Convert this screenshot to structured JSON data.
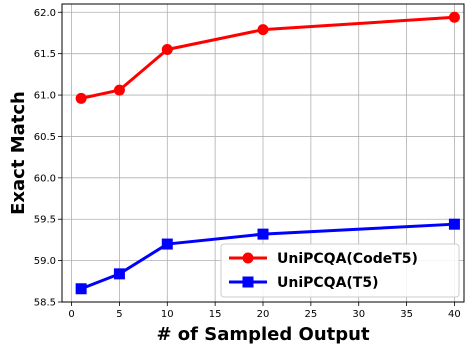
{
  "chart_data": {
    "type": "line",
    "xlabel": "# of Sampled Output",
    "ylabel": "Exact Match",
    "xlim": [
      -1,
      41
    ],
    "ylim": [
      58.5,
      62.1
    ],
    "xticks": [
      0,
      5,
      10,
      15,
      20,
      25,
      30,
      35,
      40
    ],
    "yticks": [
      58.5,
      59.0,
      59.5,
      60.0,
      60.5,
      61.0,
      61.5,
      62.0
    ],
    "xtick_labels": [
      "0",
      "5",
      "10",
      "15",
      "20",
      "25",
      "30",
      "35",
      "40"
    ],
    "ytick_labels": [
      "58.5",
      "59.0",
      "59.5",
      "60.0",
      "60.5",
      "61.0",
      "61.5",
      "62.0"
    ],
    "x": [
      1,
      5,
      10,
      20,
      40
    ],
    "grid": true,
    "legend_position": "lower-right",
    "series": [
      {
        "name": "UniPCQA(CodeT5)",
        "color": "#ff0000",
        "marker": "circle",
        "values": [
          60.96,
          61.06,
          61.55,
          61.79,
          61.94
        ]
      },
      {
        "name": "UniPCQA(T5)",
        "color": "#0000ff",
        "marker": "square",
        "values": [
          58.66,
          58.84,
          59.2,
          59.32,
          59.44
        ]
      }
    ]
  }
}
